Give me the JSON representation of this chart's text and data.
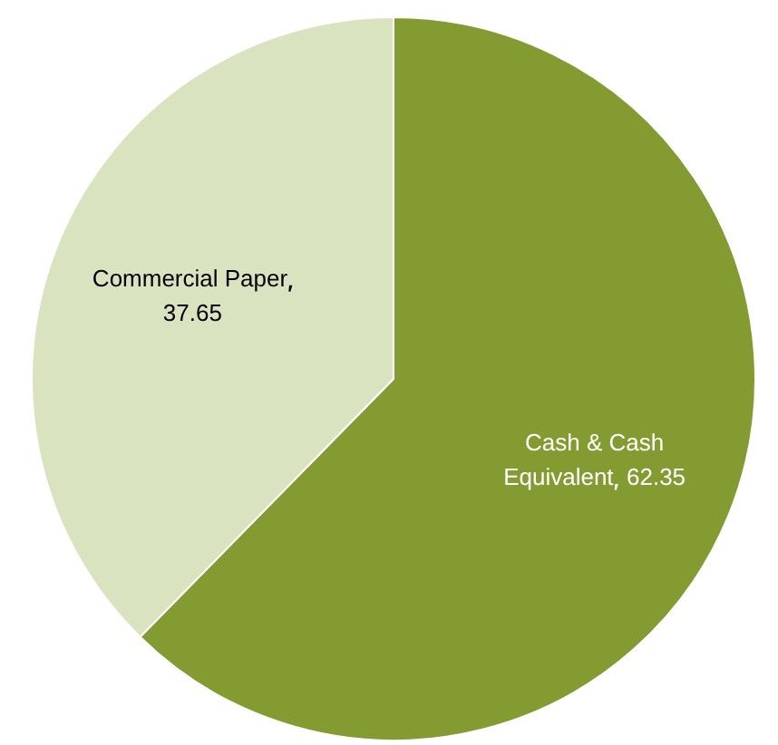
{
  "chart_data": {
    "type": "pie",
    "categories": [
      "Cash & Cash Equivalent",
      "Commercial Paper"
    ],
    "values": [
      62.35,
      37.65
    ],
    "colors": [
      "#849b32",
      "#d9e3bf"
    ],
    "data_labels": true,
    "legend": false
  }
}
